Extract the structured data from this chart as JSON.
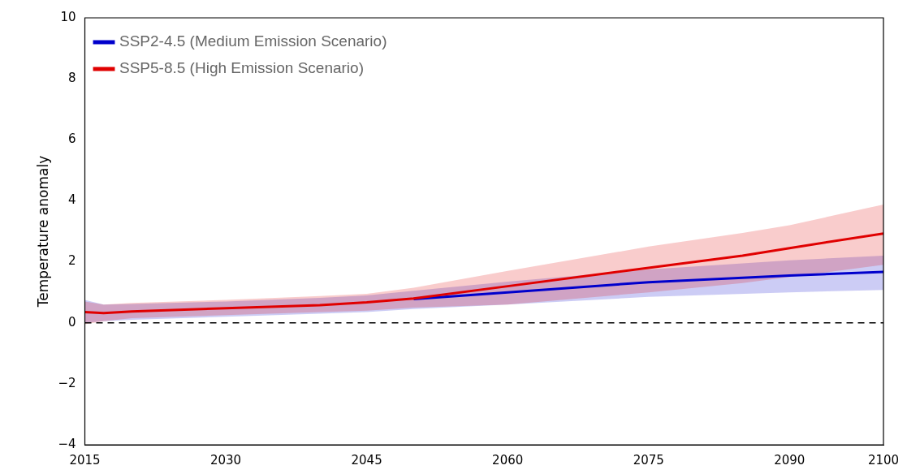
{
  "chart_data": {
    "type": "line",
    "ylabel": "Temperature anomaly",
    "xlim": [
      2015,
      2100
    ],
    "xticks": [
      2015,
      2030,
      2045,
      2060,
      2075,
      2090,
      2100
    ],
    "ylim": [
      -4,
      10
    ],
    "yticks": [
      -4,
      -2,
      0,
      2,
      4,
      6,
      8,
      10
    ],
    "grid": false,
    "legend": "top left",
    "marker": "none",
    "line_style": "solid",
    "ref_lines": [
      {
        "axis": "y",
        "value": 0,
        "color": "#000000",
        "line_style": "dashed"
      }
    ],
    "series": [
      {
        "name": "SSP2-4.5 (Medium Emission Scenario)",
        "color": "#0000cc",
        "x": [
          2015,
          2017,
          2020,
          2030,
          2040,
          2045,
          2050,
          2060,
          2075,
          2090,
          2100
        ],
        "values": [
          null,
          null,
          null,
          null,
          null,
          null,
          0.78,
          1.0,
          1.33,
          1.55,
          1.67
        ],
        "lower": [
          0.0,
          0.05,
          0.1,
          0.2,
          0.3,
          0.35,
          0.45,
          0.6,
          0.85,
          1.0,
          1.08
        ],
        "upper": [
          0.75,
          0.6,
          0.62,
          0.7,
          0.82,
          0.9,
          1.05,
          1.35,
          1.75,
          2.05,
          2.2
        ]
      },
      {
        "name": "SSP5-8.5 (High Emission Scenario)",
        "color": "#e00000",
        "x": [
          2015,
          2017,
          2020,
          2030,
          2040,
          2045,
          2050,
          2060,
          2075,
          2085,
          2090,
          2100
        ],
        "values": [
          0.35,
          0.32,
          0.37,
          0.48,
          0.58,
          0.67,
          0.8,
          1.2,
          1.8,
          2.2,
          2.45,
          2.93
        ],
        "lower": [
          -0.05,
          0.05,
          0.15,
          0.25,
          0.35,
          0.4,
          0.5,
          0.6,
          1.0,
          1.3,
          1.5,
          1.9
        ],
        "upper": [
          0.7,
          0.6,
          0.65,
          0.75,
          0.88,
          0.95,
          1.15,
          1.7,
          2.5,
          2.95,
          3.2,
          3.88
        ]
      }
    ]
  }
}
